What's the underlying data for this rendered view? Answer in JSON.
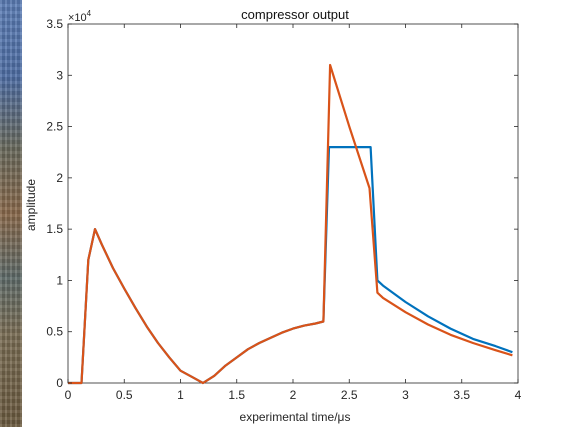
{
  "chart_data": {
    "type": "line",
    "title": "compressor output",
    "xlabel": "experimental time/μs",
    "ylabel": "amplitude",
    "xlim": [
      0,
      4
    ],
    "ylim": [
      0,
      35000
    ],
    "y_exponent_label": "×10",
    "y_exponent_power": "4",
    "x_ticks": [
      0,
      0.5,
      1,
      1.5,
      2,
      2.5,
      3,
      3.5,
      4
    ],
    "x_tick_labels": [
      "0",
      "0.5",
      "1",
      "1.5",
      "2",
      "2.5",
      "3",
      "3.5",
      "4"
    ],
    "y_ticks": [
      0,
      5000,
      10000,
      15000,
      20000,
      25000,
      30000,
      35000
    ],
    "y_tick_labels": [
      "0",
      "0.5",
      "1",
      "1.5",
      "2",
      "2.5",
      "3",
      "3.5"
    ],
    "grid": false,
    "series": [
      {
        "color": "#0072BD",
        "x": [
          0,
          0.12,
          0.18,
          0.24,
          0.3,
          0.4,
          0.5,
          0.6,
          0.7,
          0.8,
          0.9,
          1.0,
          1.1,
          1.2,
          1.3,
          1.4,
          1.5,
          1.6,
          1.7,
          1.8,
          1.9,
          2.0,
          2.1,
          2.2,
          2.27,
          2.32,
          2.4,
          2.5,
          2.6,
          2.69,
          2.75,
          2.8,
          3.0,
          3.2,
          3.4,
          3.6,
          3.8,
          3.95
        ],
        "y": [
          0,
          0,
          12000,
          15000,
          13500,
          11200,
          9200,
          7300,
          5500,
          3900,
          2500,
          1200,
          600,
          0,
          700,
          1700,
          2500,
          3300,
          3900,
          4400,
          4900,
          5300,
          5600,
          5800,
          6000,
          23000,
          23000,
          23000,
          23000,
          23000,
          10000,
          9500,
          7900,
          6500,
          5300,
          4300,
          3600,
          3000
        ]
      },
      {
        "color": "#D95319",
        "x": [
          0,
          0.12,
          0.18,
          0.24,
          0.3,
          0.4,
          0.5,
          0.6,
          0.7,
          0.8,
          0.9,
          1.0,
          1.1,
          1.2,
          1.3,
          1.4,
          1.5,
          1.6,
          1.7,
          1.8,
          1.9,
          2.0,
          2.1,
          2.2,
          2.27,
          2.33,
          2.5,
          2.68,
          2.75,
          2.8,
          3.0,
          3.2,
          3.4,
          3.6,
          3.8,
          3.95
        ],
        "y": [
          0,
          0,
          12000,
          15000,
          13500,
          11200,
          9200,
          7300,
          5500,
          3900,
          2500,
          1200,
          600,
          0,
          700,
          1700,
          2500,
          3300,
          3900,
          4400,
          4900,
          5300,
          5600,
          5800,
          6000,
          31000,
          25000,
          19000,
          8800,
          8300,
          6900,
          5700,
          4700,
          3900,
          3200,
          2700
        ]
      }
    ]
  }
}
